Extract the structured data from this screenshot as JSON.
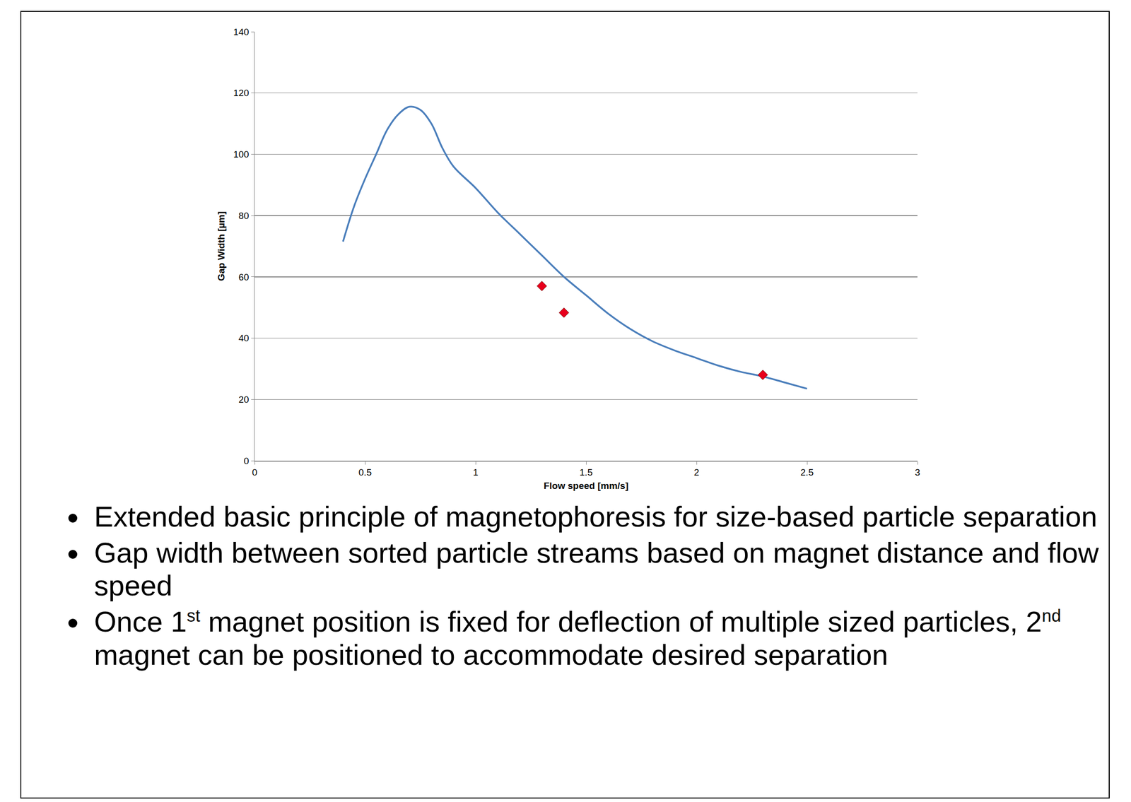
{
  "chart_data": {
    "type": "line",
    "x_label": "Flow speed [mm/s]",
    "y_label": "Gap Width [µm]",
    "xlim": [
      0,
      3
    ],
    "xticks": [
      0,
      0.5,
      1,
      1.5,
      2,
      2.5,
      3
    ],
    "ylim": [
      0,
      140
    ],
    "yticks": [
      0,
      20,
      40,
      60,
      80,
      100,
      120,
      140
    ],
    "grid": true,
    "series": [
      {
        "type": "line",
        "color": "#4a7ebb",
        "line_style": "solid",
        "x": [
          0.4,
          0.45,
          0.5,
          0.55,
          0.6,
          0.65,
          0.7,
          0.75,
          0.8,
          0.85,
          0.9,
          1.0,
          1.1,
          1.2,
          1.3,
          1.4,
          1.5,
          1.6,
          1.7,
          1.8,
          1.9,
          2.0,
          2.1,
          2.2,
          2.3,
          2.4,
          2.5
        ],
        "values": [
          71.5,
          83,
          92,
          100,
          108,
          113,
          115.5,
          114.5,
          110,
          102,
          96,
          89,
          81,
          74,
          67,
          60,
          54,
          48,
          43,
          39,
          36,
          33.5,
          31,
          29,
          27.5,
          25.5,
          23.5
        ]
      },
      {
        "type": "scatter",
        "color": "#e8001c",
        "marker": "diamond",
        "x": [
          1.3,
          1.4,
          2.3
        ],
        "values": [
          57,
          48.3,
          28
        ]
      }
    ],
    "bullets": [
      "Extended basic principle of magnetophoresis for size-based particle separation",
      "Gap width between sorted particle streams based on magnet distance and flow speed",
      "Once 1st magnet position is fixed for deflection of multiple sized particles, 2nd magnet can be positioned to accommodate desired separation"
    ]
  }
}
